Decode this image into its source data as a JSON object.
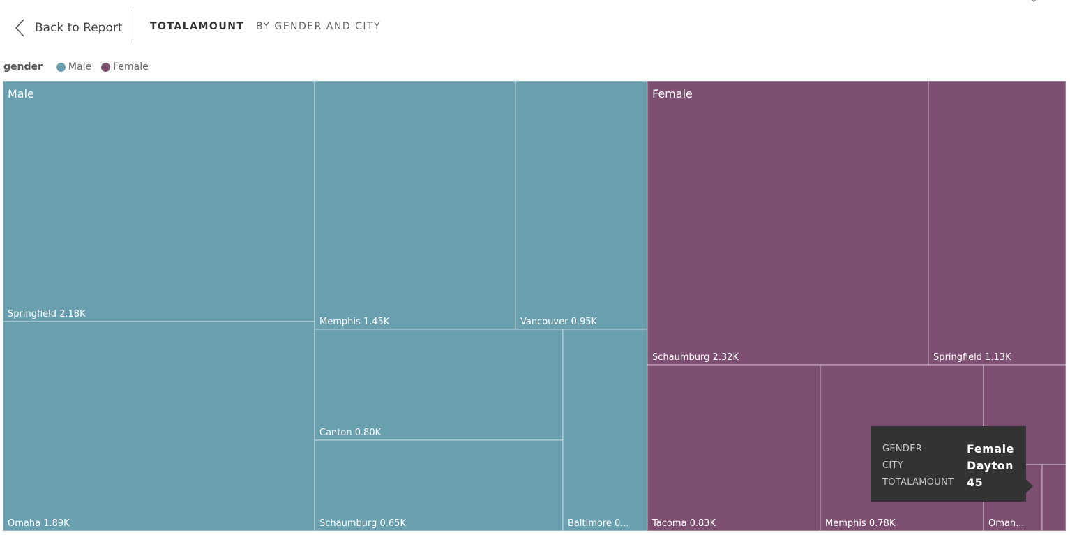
{
  "header": {
    "back_label": "Back to Report",
    "title": "TOTALAMOUNT",
    "subtitle": "BY GENDER AND CITY"
  },
  "legend": {
    "title": "gender",
    "items": [
      {
        "label": "Male",
        "color": "#6A9FB0"
      },
      {
        "label": "Female",
        "color": "#7D4F70"
      }
    ]
  },
  "tooltip": {
    "rows": [
      {
        "key": "GENDER",
        "value": "Female"
      },
      {
        "key": "CITY",
        "value": "Dayton"
      },
      {
        "key": "TOTALAMOUNT",
        "value": "45"
      }
    ]
  },
  "chart_data": {
    "type": "treemap",
    "measure": "TOTALAMOUNT",
    "groups": [
      {
        "name": "Male",
        "color": "#6A9FB0",
        "items": [
          {
            "city": "Springfield",
            "value": 2180,
            "label": "Springfield 2.18K"
          },
          {
            "city": "Omaha",
            "value": 1890,
            "label": "Omaha 1.89K"
          },
          {
            "city": "Memphis",
            "value": 1450,
            "label": "Memphis 1.45K"
          },
          {
            "city": "Vancouver",
            "value": 950,
            "label": "Vancouver 0.95K"
          },
          {
            "city": "Canton",
            "value": 800,
            "label": "Canton 0.80K"
          },
          {
            "city": "Schaumburg",
            "value": 650,
            "label": "Schaumburg 0.65K"
          },
          {
            "city": "Baltimore",
            "value": 520,
            "label": "Baltimore 0..."
          }
        ]
      },
      {
        "name": "Female",
        "color": "#7D4F70",
        "items": [
          {
            "city": "Schaumburg",
            "value": 2320,
            "label": "Schaumburg 2.32K"
          },
          {
            "city": "Springfield",
            "value": 1130,
            "label": "Springfield 1.13K"
          },
          {
            "city": "Tacoma",
            "value": 830,
            "label": "Tacoma 0.83K"
          },
          {
            "city": "Memphis",
            "value": 780,
            "label": "Memphis 0.78K"
          },
          {
            "city": "",
            "value": 170,
            "label": "...re ..."
          },
          {
            "city": "Omaha",
            "value": 200,
            "label": "Omah..."
          },
          {
            "city": "Dayton",
            "value": 45,
            "label": ""
          }
        ]
      }
    ]
  }
}
